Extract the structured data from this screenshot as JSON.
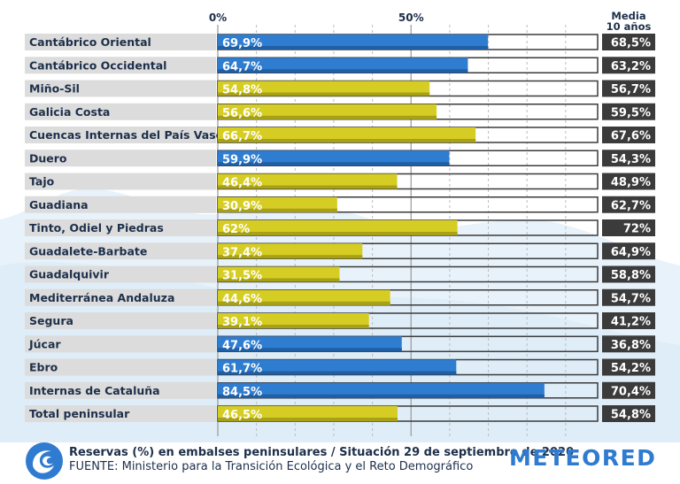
{
  "chart_data": {
    "type": "bar",
    "orientation": "horizontal",
    "xaxis": {
      "ticks": [
        {
          "value": 0,
          "label": "0%"
        },
        {
          "value": 50,
          "label": "50%"
        }
      ],
      "range": [
        0,
        100
      ],
      "grid": true
    },
    "average_header": [
      "Media",
      "10 años"
    ],
    "categories": [
      "Cantábrico Oriental",
      "Cantábrico Occidental",
      "Miño-Sil",
      "Galicia Costa",
      "Cuencas Internas del País Vasco",
      "Duero",
      "Tajo",
      "Guadiana",
      "Tinto, Odiel y Piedras",
      "Guadalete-Barbate",
      "Guadalquivir",
      "Mediterránea Andaluza",
      "Segura",
      "Júcar",
      "Ebro",
      "Internas de Cataluña",
      "Total peninsular"
    ],
    "series": [
      {
        "name": "Reservas (%) 29 septiembre 2020",
        "values": [
          69.9,
          64.7,
          54.8,
          56.6,
          66.7,
          59.9,
          46.4,
          30.9,
          62,
          37.4,
          31.5,
          44.6,
          39.1,
          47.6,
          61.7,
          84.5,
          46.5
        ],
        "labels": [
          "69,9%",
          "64,7%",
          "54,8%",
          "56,6%",
          "66,7%",
          "59,9%",
          "46,4%",
          "30,9%",
          "62%",
          "37,4%",
          "31,5%",
          "44,6%",
          "39,1%",
          "47,6%",
          "61,7%",
          "84,5%",
          "46,5%"
        ],
        "colors": [
          "blue",
          "blue",
          "yellow",
          "yellow",
          "yellow",
          "blue",
          "yellow",
          "yellow",
          "yellow",
          "yellow",
          "yellow",
          "yellow",
          "yellow",
          "blue",
          "blue",
          "blue",
          "yellow"
        ]
      },
      {
        "name": "Media 10 años",
        "values": [
          68.5,
          63.2,
          56.7,
          59.5,
          67.6,
          54.3,
          48.9,
          62.7,
          72,
          64.9,
          58.8,
          54.7,
          41.2,
          36.8,
          54.2,
          70.4,
          54.8
        ],
        "labels": [
          "68,5%",
          "63,2%",
          "56,7%",
          "59,5%",
          "67,6%",
          "54,3%",
          "48,9%",
          "62,7%",
          "72%",
          "64,9%",
          "58,8%",
          "54,7%",
          "41,2%",
          "36,8%",
          "54,2%",
          "70,4%",
          "54,8%"
        ]
      }
    ],
    "palette": {
      "blue": "#2f7dd0",
      "blue_shade": "#1f5fa5",
      "yellow": "#d6cd24",
      "yellow_shade": "#a8a115",
      "label_bg": "#dcdcdc",
      "value_box": "#3b3b3b",
      "text_dark": "#1d2f4a"
    }
  },
  "footer": {
    "caption": "Reservas (%) en embalses peninsulares / Situación 29 de septiembre de 2020",
    "source": "FUENTE: Ministerio para la Transición Ecológica y el Reto Demográfico",
    "brand": "METEORED"
  }
}
